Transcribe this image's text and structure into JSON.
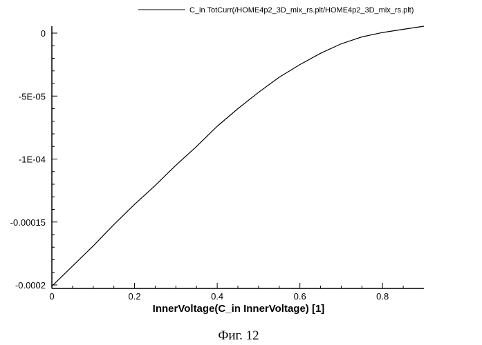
{
  "chart_data": {
    "type": "line",
    "title": "",
    "xlabel": "InnerVoltage(C_in InnerVoltage) [1]",
    "ylabel": "",
    "xlim": [
      0,
      0.9
    ],
    "ylim": [
      -0.0002,
      1e-05
    ],
    "grid": false,
    "legend_position": "top-right",
    "x_ticks": [
      {
        "value": 0,
        "label": "0"
      },
      {
        "value": 0.2,
        "label": "0.2"
      },
      {
        "value": 0.4,
        "label": "0.4"
      },
      {
        "value": 0.6,
        "label": "0.6"
      },
      {
        "value": 0.8,
        "label": "0.8"
      }
    ],
    "y_ticks": [
      {
        "value": 0,
        "label": "0"
      },
      {
        "value": -5e-05,
        "label": "-5E-05"
      },
      {
        "value": -0.0001,
        "label": "-1E-04"
      },
      {
        "value": -0.00015,
        "label": "-0.00015"
      },
      {
        "value": -0.0002,
        "label": "-0.0002"
      }
    ],
    "series": [
      {
        "name": "C_in TotCurr(/HOME4p2_3D_mix_rs.plt/HOME4p2_3D_mix_rs.plt)",
        "color": "#000000",
        "x": [
          0,
          0.05,
          0.1,
          0.15,
          0.2,
          0.25,
          0.3,
          0.35,
          0.4,
          0.45,
          0.5,
          0.55,
          0.6,
          0.65,
          0.7,
          0.75,
          0.8,
          0.85,
          0.9
        ],
        "y": [
          -0.000201,
          -0.000185,
          -0.000169,
          -0.000152,
          -0.000136,
          -0.000121,
          -0.000105,
          -9e-05,
          -7.4e-05,
          -6e-05,
          -4.7e-05,
          -3.5e-05,
          -2.5e-05,
          -1.6e-05,
          -8.5e-06,
          -3e-06,
          5e-07,
          3e-06,
          5.5e-06
        ]
      }
    ]
  },
  "caption": "Фиг. 12"
}
